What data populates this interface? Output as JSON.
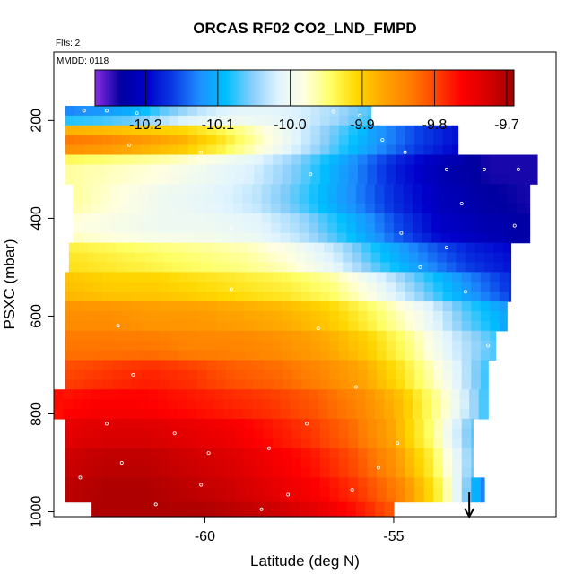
{
  "chart_data": {
    "type": "heatmap",
    "title": "ORCAS RF02 CO2_LND_FMPD",
    "annotations": {
      "flights": "Flts: 2",
      "date": "MMDD: 0118"
    },
    "xlabel": "Latitude (deg N)",
    "ylabel": "PSXC (mbar)",
    "x_ticks": [
      "-60",
      "-55"
    ],
    "x_tick_values": [
      -60,
      -55
    ],
    "y_ticks": [
      "200",
      "400",
      "600",
      "800",
      "1000"
    ],
    "y_tick_values": [
      200,
      400,
      600,
      800,
      1000
    ],
    "xlim": [
      -64.0,
      -50.7
    ],
    "ylim": [
      1010,
      60
    ],
    "y_reversed": true,
    "colorbar": {
      "min": -10.27,
      "max": -9.69,
      "ticks": [
        "-10.2",
        "-10.1",
        "-10.0",
        "-9.9",
        "-9.8",
        "-9.7"
      ],
      "tick_values": [
        -10.2,
        -10.1,
        -10.0,
        -9.9,
        -9.8,
        -9.7
      ],
      "colors": [
        "#8a2be2",
        "#0000a0",
        "#0000cc",
        "#0a3ee6",
        "#1e90ff",
        "#00bfff",
        "#87cefa",
        "#e0f4ff",
        "#ffffe0",
        "#ffff66",
        "#ffd700",
        "#ffa500",
        "#ff7f00",
        "#ff4500",
        "#ff0000",
        "#d60000",
        "#a00000"
      ]
    },
    "grid_x_step": 0.25,
    "grid_y_step": 20,
    "pressure_bands": [
      {
        "p": 180,
        "x0": -63.7,
        "x1": -55.6,
        "v": [
          -10.13,
          -10.12,
          -10.1,
          -10.06,
          -10.03,
          -10.01,
          -10.01,
          -10.02,
          -10.04,
          -10.07
        ]
      },
      {
        "p": 240,
        "x0": -63.7,
        "x1": -53.3,
        "v": [
          -9.83,
          -9.84,
          -9.86,
          -9.88,
          -9.92,
          -9.97,
          -10.02,
          -10.07,
          -10.12,
          -10.16,
          -10.19
        ]
      },
      {
        "p": 300,
        "x0": -63.7,
        "x1": -51.2,
        "v": [
          -9.96,
          -9.97,
          -9.98,
          -10.0,
          -10.02,
          -10.06,
          -10.12,
          -10.18,
          -10.22,
          -10.24,
          -10.24
        ]
      },
      {
        "p": 360,
        "x0": -63.5,
        "x1": -51.4,
        "v": [
          -9.96,
          -9.98,
          -10.0,
          -10.01,
          -10.03,
          -10.07,
          -10.12,
          -10.17,
          -10.21,
          -10.23,
          -10.24
        ]
      },
      {
        "p": 420,
        "x0": -63.5,
        "x1": -51.4,
        "v": [
          -9.98,
          -9.99,
          -10.0,
          -10.0,
          -10.01,
          -10.04,
          -10.09,
          -10.15,
          -10.2,
          -10.22,
          -10.23
        ]
      },
      {
        "p": 480,
        "x0": -63.6,
        "x1": -51.9,
        "v": [
          -9.92,
          -9.93,
          -9.94,
          -9.95,
          -9.96,
          -9.98,
          -10.02,
          -10.08,
          -10.13,
          -10.17,
          -10.19
        ]
      },
      {
        "p": 540,
        "x0": -63.7,
        "x1": -51.9,
        "v": [
          -9.89,
          -9.9,
          -9.9,
          -9.91,
          -9.92,
          -9.93,
          -9.95,
          -10.0,
          -10.06,
          -10.12,
          -10.17
        ]
      },
      {
        "p": 600,
        "x0": -63.7,
        "x1": -52.0,
        "v": [
          -9.85,
          -9.85,
          -9.86,
          -9.86,
          -9.87,
          -9.88,
          -9.9,
          -9.94,
          -9.99,
          -10.06,
          -10.11
        ]
      },
      {
        "p": 660,
        "x0": -63.7,
        "x1": -52.3,
        "v": [
          -9.83,
          -9.83,
          -9.83,
          -9.84,
          -9.84,
          -9.85,
          -9.87,
          -9.9,
          -9.95,
          -10.02,
          -10.07
        ]
      },
      {
        "p": 720,
        "x0": -63.7,
        "x1": -52.5,
        "v": [
          -9.8,
          -9.79,
          -9.78,
          -9.79,
          -9.81,
          -9.82,
          -9.84,
          -9.87,
          -9.92,
          -9.99,
          -10.08
        ]
      },
      {
        "p": 780,
        "x0": -64.0,
        "x1": -52.5,
        "v": [
          -9.77,
          -9.76,
          -9.76,
          -9.77,
          -9.78,
          -9.79,
          -9.81,
          -9.84,
          -9.89,
          -9.97,
          -10.08
        ]
      },
      {
        "p": 840,
        "x0": -63.7,
        "x1": -52.9,
        "v": [
          -9.74,
          -9.73,
          -9.73,
          -9.74,
          -9.75,
          -9.77,
          -9.79,
          -9.82,
          -9.87,
          -9.95,
          -10.07
        ]
      },
      {
        "p": 900,
        "x0": -63.7,
        "x1": -52.9,
        "v": [
          -9.72,
          -9.71,
          -9.71,
          -9.72,
          -9.73,
          -9.75,
          -9.77,
          -9.8,
          -9.85,
          -9.93,
          -10.06
        ]
      },
      {
        "p": 960,
        "x0": -63.7,
        "x1": -52.6,
        "v": [
          -9.71,
          -9.7,
          -9.7,
          -9.71,
          -9.72,
          -9.74,
          -9.76,
          -9.79,
          -9.84,
          -9.94,
          -10.14
        ]
      },
      {
        "p": 1000,
        "x0": -63.0,
        "x1": -55.0,
        "v": [
          -9.7,
          -9.7,
          -9.7,
          -9.7,
          -9.71,
          -9.72,
          -9.74,
          -9.77,
          -9.81
        ]
      }
    ],
    "arrow": {
      "x": -53.0,
      "p_from": 960,
      "p_to": 1010
    },
    "sample_points": [
      {
        "x": -63.2,
        "y": 180
      },
      {
        "x": -62.6,
        "y": 180
      },
      {
        "x": -61.8,
        "y": 185
      },
      {
        "x": -56.6,
        "y": 182
      },
      {
        "x": -55.9,
        "y": 190
      },
      {
        "x": -55.3,
        "y": 240
      },
      {
        "x": -54.7,
        "y": 265
      },
      {
        "x": -53.6,
        "y": 300
      },
      {
        "x": -52.6,
        "y": 300
      },
      {
        "x": -51.7,
        "y": 300
      },
      {
        "x": -53.2,
        "y": 370
      },
      {
        "x": -54.8,
        "y": 430
      },
      {
        "x": -53.6,
        "y": 460
      },
      {
        "x": -51.8,
        "y": 415
      },
      {
        "x": -62.0,
        "y": 250
      },
      {
        "x": -60.1,
        "y": 265
      },
      {
        "x": -57.2,
        "y": 310
      },
      {
        "x": -59.3,
        "y": 420
      },
      {
        "x": -54.3,
        "y": 500
      },
      {
        "x": -53.1,
        "y": 550
      },
      {
        "x": -59.3,
        "y": 545
      },
      {
        "x": -62.3,
        "y": 620
      },
      {
        "x": -57.0,
        "y": 625
      },
      {
        "x": -52.5,
        "y": 660
      },
      {
        "x": -61.9,
        "y": 720
      },
      {
        "x": -56.0,
        "y": 745
      },
      {
        "x": -62.6,
        "y": 820
      },
      {
        "x": -60.8,
        "y": 840
      },
      {
        "x": -58.3,
        "y": 870
      },
      {
        "x": -55.4,
        "y": 910
      },
      {
        "x": -63.3,
        "y": 930
      },
      {
        "x": -60.1,
        "y": 945
      },
      {
        "x": -57.8,
        "y": 965
      },
      {
        "x": -56.1,
        "y": 955
      },
      {
        "x": -61.3,
        "y": 985
      },
      {
        "x": -58.5,
        "y": 995
      },
      {
        "x": -62.2,
        "y": 900
      },
      {
        "x": -59.9,
        "y": 880
      },
      {
        "x": -57.3,
        "y": 820
      },
      {
        "x": -54.9,
        "y": 860
      }
    ]
  }
}
